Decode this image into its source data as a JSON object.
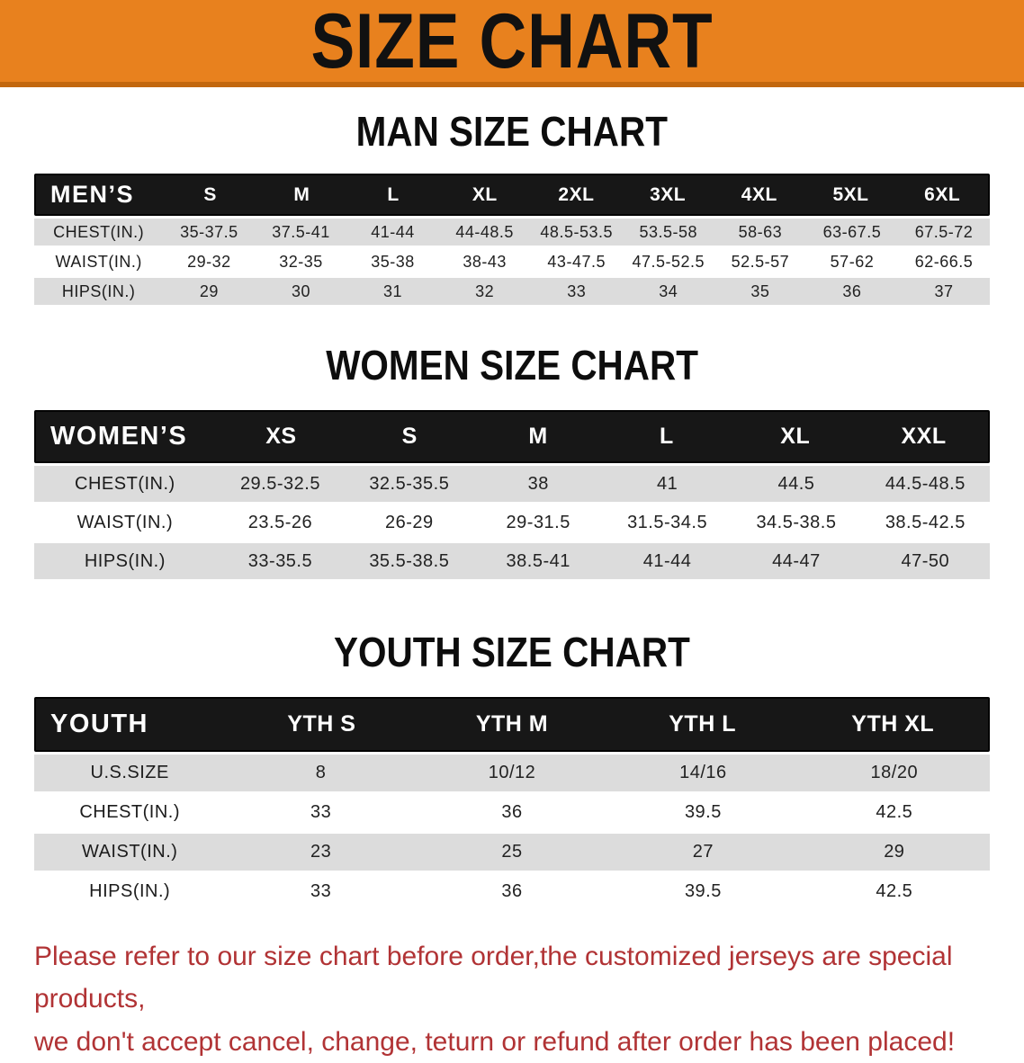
{
  "banner": {
    "title": "SIZE CHART"
  },
  "colors": {
    "banner_bg": "#e8811e",
    "banner_edge": "#c2670e",
    "table_header_bg": "#171717",
    "row_gray": "#dcdcdc",
    "disclaimer_red": "#b13335"
  },
  "men": {
    "heading": "MAN SIZE CHART",
    "label": "MEN’S",
    "columns": [
      "S",
      "M",
      "L",
      "XL",
      "2XL",
      "3XL",
      "4XL",
      "5XL",
      "6XL"
    ],
    "rows": [
      {
        "label": "CHEST(IN.)",
        "values": [
          "35-37.5",
          "37.5-41",
          "41-44",
          "44-48.5",
          "48.5-53.5",
          "53.5-58",
          "58-63",
          "63-67.5",
          "67.5-72"
        ]
      },
      {
        "label": "WAIST(IN.)",
        "values": [
          "29-32",
          "32-35",
          "35-38",
          "38-43",
          "43-47.5",
          "47.5-52.5",
          "52.5-57",
          "57-62",
          "62-66.5"
        ]
      },
      {
        "label": "HIPS(IN.)",
        "values": [
          "29",
          "30",
          "31",
          "32",
          "33",
          "34",
          "35",
          "36",
          "37"
        ]
      }
    ]
  },
  "women": {
    "heading": "WOMEN SIZE CHART",
    "label": "WOMEN’S",
    "columns": [
      "XS",
      "S",
      "M",
      "L",
      "XL",
      "XXL"
    ],
    "rows": [
      {
        "label": "CHEST(IN.)",
        "values": [
          "29.5-32.5",
          "32.5-35.5",
          "38",
          "41",
          "44.5",
          "44.5-48.5"
        ]
      },
      {
        "label": "WAIST(IN.)",
        "values": [
          "23.5-26",
          "26-29",
          "29-31.5",
          "31.5-34.5",
          "34.5-38.5",
          "38.5-42.5"
        ]
      },
      {
        "label": "HIPS(IN.)",
        "values": [
          "33-35.5",
          "35.5-38.5",
          "38.5-41",
          "41-44",
          "44-47",
          "47-50"
        ]
      }
    ]
  },
  "youth": {
    "heading": "YOUTH SIZE CHART",
    "label": "YOUTH",
    "columns": [
      "YTH S",
      "YTH M",
      "YTH L",
      "YTH XL"
    ],
    "rows": [
      {
        "label": "U.S.SIZE",
        "values": [
          "8",
          "10/12",
          "14/16",
          "18/20"
        ]
      },
      {
        "label": "CHEST(IN.)",
        "values": [
          "33",
          "36",
          "39.5",
          "42.5"
        ]
      },
      {
        "label": "WAIST(IN.)",
        "values": [
          "23",
          "25",
          "27",
          "29"
        ]
      },
      {
        "label": "HIPS(IN.)",
        "values": [
          "33",
          "36",
          "39.5",
          "42.5"
        ]
      }
    ]
  },
  "disclaimer": {
    "line1": "Please refer to our size chart before order,the customized jerseys are special products,",
    "line2": "we don't accept cancel, change, teturn or refund after order has been placed!"
  }
}
